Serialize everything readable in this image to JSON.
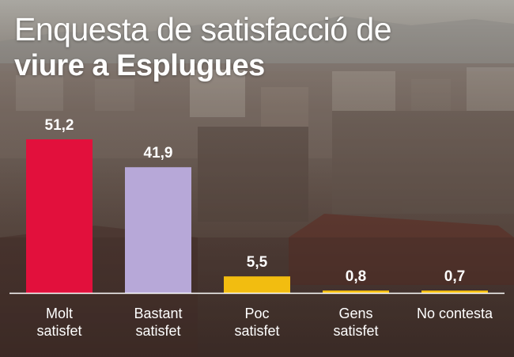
{
  "title": {
    "line1": "Enquesta de satisfacció de",
    "line2": "viure a Esplugues"
  },
  "chart_data": {
    "type": "bar",
    "title": "Enquesta de satisfacció de viure a Esplugues",
    "categories": [
      [
        "Molt",
        "satisfet"
      ],
      [
        "Bastant",
        "satisfet"
      ],
      [
        "Poc",
        "satisfet"
      ],
      [
        "Gens",
        "satisfet"
      ],
      [
        "No contesta"
      ]
    ],
    "values": [
      51.2,
      41.9,
      5.5,
      0.8,
      0.7
    ],
    "value_labels": [
      "51,2",
      "41,9",
      "5,5",
      "0,8",
      "0,7"
    ],
    "colors": [
      "#e2103c",
      "#b7a8d8",
      "#f2bd10",
      "#f2bd10",
      "#f2bd10"
    ],
    "ylim": [
      0,
      51.2
    ],
    "xlabel": "",
    "ylabel": ""
  }
}
